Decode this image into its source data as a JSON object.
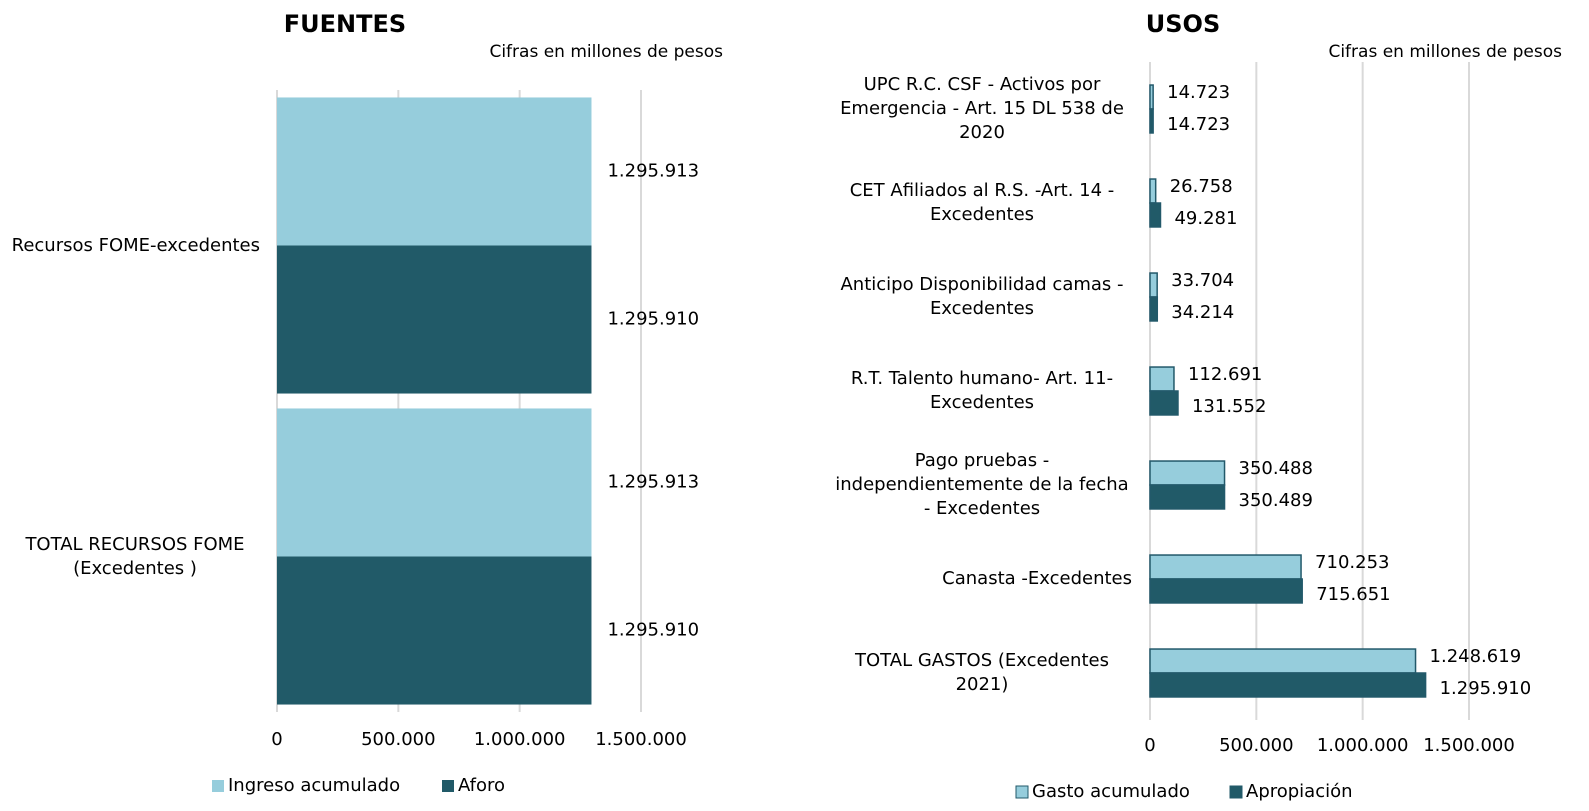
{
  "chart_data": [
    {
      "type": "hbar",
      "title": "FUENTES",
      "subtitle": "Cifras en millones de pesos",
      "categories": [
        "Recursos FOME-excedentes",
        "TOTAL RECURSOS FOME (Excedentes )"
      ],
      "series": [
        {
          "name": "Ingreso acumulado",
          "color": "#96cddc",
          "values": [
            1295913,
            1295913
          ],
          "value_labels": [
            "1.295.913",
            "1.295.913"
          ]
        },
        {
          "name": "Aforo",
          "color": "#215a68",
          "values": [
            1295910,
            1295910
          ],
          "value_labels": [
            "1.295.910",
            "1.295.910"
          ]
        }
      ],
      "xlim": [
        0,
        1500000
      ],
      "xticks": [
        0,
        {
          "value": 500000,
          "label": "500.000"
        },
        {
          "value": 1000000,
          "label": "1.000.000"
        },
        {
          "value": 1500000,
          "label": "1.500.000"
        }
      ],
      "grid": true,
      "legend": "bottom"
    },
    {
      "type": "hbar",
      "title": "USOS",
      "subtitle": "Cifras en millones de pesos",
      "categories": [
        "UPC R.C. CSF - Activos por Emergencia - Art. 15 DL 538 de 2020",
        "CET Afiliados al R.S. -Art. 14 - Excedentes",
        "Anticipo Disponibilidad camas - Excedentes",
        "R.T. Talento humano- Art. 11- Excedentes",
        "Pago pruebas - independientemente de la fecha - Excedentes",
        "Canasta -Excedentes",
        "TOTAL GASTOS (Excedentes 2021)"
      ],
      "series": [
        {
          "name": "Gasto acumulado",
          "color": "#96cddc",
          "values": [
            14723,
            26758,
            33704,
            112691,
            350488,
            710253,
            1248619
          ],
          "value_labels": [
            "14.723",
            "26.758",
            "33.704",
            "112.691",
            "350.488",
            "710.253",
            "1.248.619"
          ]
        },
        {
          "name": "Apropiación",
          "color": "#215a68",
          "values": [
            14723,
            49281,
            34214,
            131552,
            350489,
            715651,
            1295910
          ],
          "value_labels": [
            "14.723",
            "49.281",
            "34.214",
            "131.552",
            "350.489",
            "715.651",
            "1.295.910"
          ]
        }
      ],
      "xlim": [
        0,
        1500000
      ],
      "xticks": [
        0,
        {
          "value": 500000,
          "label": "500.000"
        },
        {
          "value": 1000000,
          "label": "1.000.000"
        },
        {
          "value": 1500000,
          "label": "1.500.000"
        }
      ],
      "grid": true,
      "legend": "bottom"
    }
  ]
}
